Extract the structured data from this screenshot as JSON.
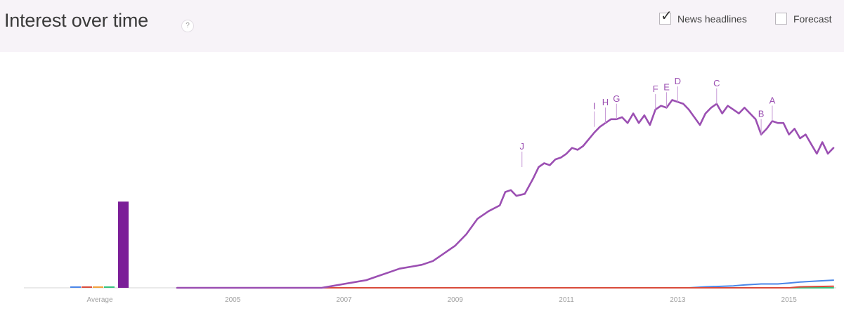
{
  "header": {
    "title": "Interest over time",
    "help_icon": "?",
    "news_headlines": {
      "label": "News headlines",
      "checked": true,
      "mark": "✓"
    },
    "forecast": {
      "label": "Forecast",
      "checked": false
    }
  },
  "chart_data": {
    "type": "line",
    "title": "Interest over time",
    "xlabel": "",
    "ylabel": "",
    "xlim": [
      2004.0,
      2015.6
    ],
    "ylim": [
      0,
      100
    ],
    "x_ticks": [
      "2005",
      "2007",
      "2009",
      "2011",
      "2013",
      "2015"
    ],
    "average_label": "Average",
    "grid": false,
    "colors": {
      "purple": "#8e3aa3",
      "blue": "#4a86e8",
      "green": "#35c27d",
      "red": "#d94a3a",
      "orange": "#f2a23c"
    },
    "average_bars": [
      {
        "color": "#4a86e8",
        "value": 0.5
      },
      {
        "color": "#d94a3a",
        "value": 0.5
      },
      {
        "color": "#f2a23c",
        "value": 0.5
      },
      {
        "color": "#35c27d",
        "value": 0.5
      },
      {
        "color": "#7b1e98",
        "value": 45
      }
    ],
    "series": [
      {
        "color": "#9b4fb2",
        "points": [
          [
            2004.0,
            0
          ],
          [
            2005.0,
            0
          ],
          [
            2006.0,
            0
          ],
          [
            2006.6,
            0
          ],
          [
            2006.8,
            1
          ],
          [
            2007.0,
            2
          ],
          [
            2007.2,
            3
          ],
          [
            2007.4,
            4
          ],
          [
            2007.6,
            6
          ],
          [
            2007.8,
            8
          ],
          [
            2008.0,
            10
          ],
          [
            2008.2,
            11
          ],
          [
            2008.4,
            12
          ],
          [
            2008.6,
            14
          ],
          [
            2008.8,
            18
          ],
          [
            2009.0,
            22
          ],
          [
            2009.2,
            28
          ],
          [
            2009.4,
            36
          ],
          [
            2009.6,
            40
          ],
          [
            2009.8,
            43
          ],
          [
            2009.9,
            50
          ],
          [
            2010.0,
            51
          ],
          [
            2010.1,
            48
          ],
          [
            2010.25,
            49
          ],
          [
            2010.4,
            57
          ],
          [
            2010.5,
            63
          ],
          [
            2010.6,
            65
          ],
          [
            2010.7,
            64
          ],
          [
            2010.8,
            67
          ],
          [
            2010.9,
            68
          ],
          [
            2011.0,
            70
          ],
          [
            2011.1,
            73
          ],
          [
            2011.2,
            72
          ],
          [
            2011.3,
            74
          ],
          [
            2011.5,
            81
          ],
          [
            2011.6,
            84
          ],
          [
            2011.7,
            86
          ],
          [
            2011.8,
            88
          ],
          [
            2011.9,
            88
          ],
          [
            2012.0,
            89
          ],
          [
            2012.1,
            86
          ],
          [
            2012.2,
            91
          ],
          [
            2012.3,
            86
          ],
          [
            2012.4,
            90
          ],
          [
            2012.5,
            85
          ],
          [
            2012.6,
            93
          ],
          [
            2012.7,
            95
          ],
          [
            2012.8,
            94
          ],
          [
            2012.9,
            98
          ],
          [
            2013.0,
            97
          ],
          [
            2013.1,
            96
          ],
          [
            2013.2,
            93
          ],
          [
            2013.4,
            85
          ],
          [
            2013.5,
            91
          ],
          [
            2013.6,
            94
          ],
          [
            2013.7,
            96
          ],
          [
            2013.8,
            91
          ],
          [
            2013.9,
            95
          ],
          [
            2014.0,
            93
          ],
          [
            2014.1,
            91
          ],
          [
            2014.2,
            94
          ],
          [
            2014.4,
            88
          ],
          [
            2014.5,
            80
          ],
          [
            2014.6,
            83
          ],
          [
            2014.7,
            87
          ],
          [
            2014.8,
            86
          ],
          [
            2014.9,
            86
          ],
          [
            2015.0,
            80
          ],
          [
            2015.1,
            83
          ],
          [
            2015.2,
            78
          ],
          [
            2015.3,
            80
          ],
          [
            2015.4,
            75
          ],
          [
            2015.5,
            70
          ],
          [
            2015.6,
            76
          ],
          [
            2015.7,
            70
          ],
          [
            2015.8,
            73
          ]
        ]
      },
      {
        "color": "#4a86e8",
        "points": [
          [
            2004.0,
            0
          ],
          [
            2013.2,
            0
          ],
          [
            2013.5,
            0.5
          ],
          [
            2014.0,
            1
          ],
          [
            2014.2,
            1.5
          ],
          [
            2014.5,
            2
          ],
          [
            2014.8,
            2
          ],
          [
            2015.0,
            2.5
          ],
          [
            2015.2,
            3
          ],
          [
            2015.5,
            3.5
          ],
          [
            2015.8,
            4
          ]
        ]
      },
      {
        "color": "#35c27d",
        "points": [
          [
            2004.0,
            0
          ],
          [
            2015.8,
            0
          ]
        ]
      },
      {
        "color": "#d94a3a",
        "points": [
          [
            2004.0,
            0
          ],
          [
            2015.0,
            0
          ],
          [
            2015.2,
            0.5
          ],
          [
            2015.8,
            0.8
          ]
        ]
      }
    ],
    "annotations": [
      {
        "label": "J",
        "x": 2010.2,
        "y": 63
      },
      {
        "label": "I",
        "x": 2011.5,
        "y": 84
      },
      {
        "label": "H",
        "x": 2011.7,
        "y": 86
      },
      {
        "label": "G",
        "x": 2011.9,
        "y": 88
      },
      {
        "label": "F",
        "x": 2012.6,
        "y": 93
      },
      {
        "label": "E",
        "x": 2012.8,
        "y": 94
      },
      {
        "label": "D",
        "x": 2013.0,
        "y": 97
      },
      {
        "label": "C",
        "x": 2013.7,
        "y": 96
      },
      {
        "label": "B",
        "x": 2014.5,
        "y": 80
      },
      {
        "label": "A",
        "x": 2014.7,
        "y": 87
      }
    ]
  }
}
